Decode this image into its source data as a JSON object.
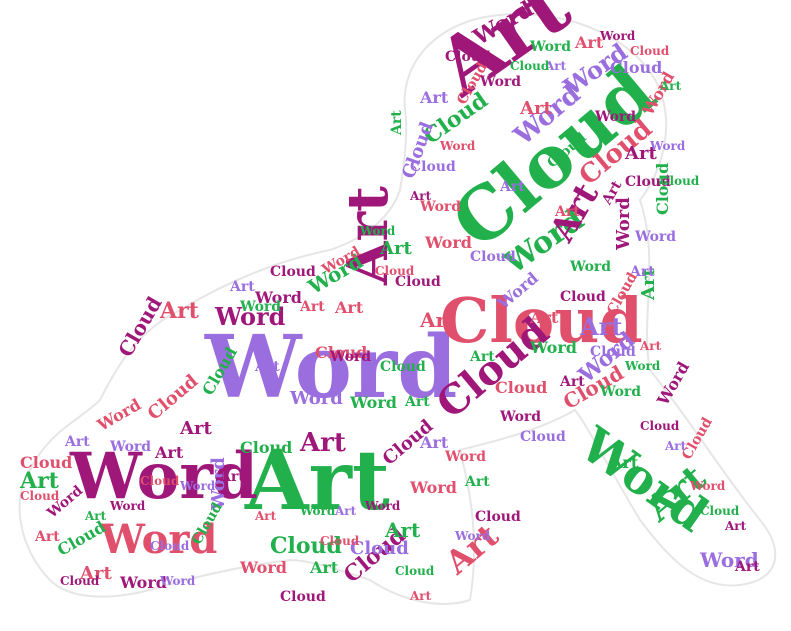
{
  "words": [
    "Word",
    "Art",
    "Cloud"
  ],
  "palette": {
    "magenta": "#a0177a",
    "green": "#22b04c",
    "purple": "#9b6ee0",
    "pink": "#e0506c"
  }
}
